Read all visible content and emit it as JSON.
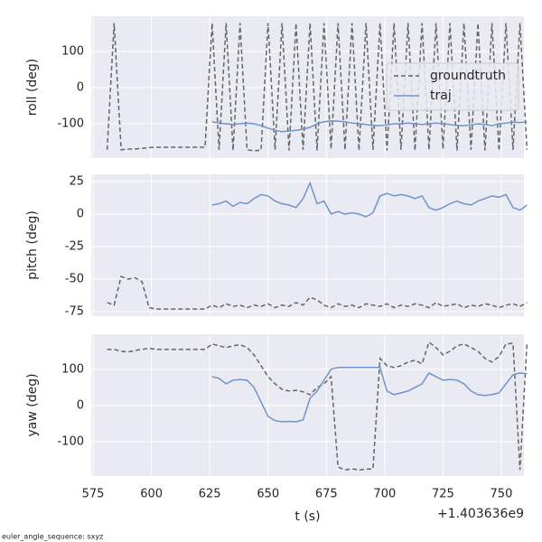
{
  "chart_data": [
    {
      "type": "line",
      "ylabel": "roll (deg)",
      "ylim": [
        -195,
        197
      ],
      "yticks": [
        -100,
        0,
        100
      ],
      "xlim": [
        574.2,
        759.7
      ],
      "xticks": [
        575,
        600,
        625,
        650,
        675,
        700,
        725,
        750
      ],
      "grid": true,
      "legend": "center right",
      "x": [
        581,
        584,
        587,
        590,
        593,
        596,
        599,
        602,
        605,
        608,
        611,
        614,
        617,
        620,
        623,
        626,
        629,
        632,
        635,
        638,
        641,
        644,
        647,
        650,
        653,
        656,
        659,
        662,
        665,
        668,
        671,
        674,
        677,
        680,
        683,
        686,
        689,
        692,
        695,
        698,
        701,
        704,
        707,
        710,
        713,
        716,
        719,
        722,
        725,
        728,
        731,
        734,
        737,
        740,
        743,
        746,
        749,
        752,
        755,
        758,
        761
      ],
      "series": [
        {
          "name": "groundtruth",
          "color": "#666666",
          "dashed": true,
          "values": [
            -172,
            178,
            -172,
            -170,
            -170,
            -168,
            -166,
            -165,
            -165,
            -165,
            -165,
            -165,
            -165,
            -165,
            -165,
            178,
            -172,
            178,
            -174,
            178,
            -172,
            -175,
            -173,
            178,
            -172,
            178,
            -174,
            178,
            -172,
            178,
            -174,
            178,
            -170,
            178,
            -172,
            178,
            -174,
            178,
            -172,
            178,
            -174,
            178,
            -172,
            178,
            -174,
            178,
            -172,
            178,
            -170,
            178,
            -174,
            178,
            -172,
            178,
            -174,
            178,
            -175,
            178,
            -172,
            178,
            -172
          ]
        },
        {
          "name": "traj",
          "color": "#7094c8",
          "dashed": false,
          "values": [
            null,
            null,
            null,
            null,
            null,
            null,
            null,
            null,
            null,
            null,
            null,
            null,
            null,
            null,
            null,
            -95,
            -98,
            -100,
            -102,
            -100,
            -98,
            -100,
            -105,
            -112,
            -118,
            -122,
            -120,
            -118,
            -115,
            -110,
            -100,
            -95,
            -92,
            -93,
            -95,
            -98,
            -100,
            -102,
            -105,
            -105,
            -103,
            -100,
            -100,
            -98,
            -100,
            -102,
            -100,
            -98,
            -100,
            -102,
            -105,
            -105,
            -103,
            -100,
            -102,
            -105,
            -100,
            -98,
            -96,
            -97,
            -95
          ]
        }
      ]
    },
    {
      "type": "line",
      "ylabel": "pitch (deg)",
      "ylim": [
        -78.5,
        30.6
      ],
      "yticks": [
        -75,
        -50,
        -25,
        0,
        25
      ],
      "xlim": [
        574.2,
        759.7
      ],
      "xticks": [
        575,
        600,
        625,
        650,
        675,
        700,
        725,
        750
      ],
      "grid": true,
      "x": [
        581,
        584,
        587,
        590,
        593,
        596,
        599,
        602,
        605,
        608,
        611,
        614,
        617,
        620,
        623,
        626,
        629,
        632,
        635,
        638,
        641,
        644,
        647,
        650,
        653,
        656,
        659,
        662,
        665,
        668,
        671,
        674,
        677,
        680,
        683,
        686,
        689,
        692,
        695,
        698,
        701,
        704,
        707,
        710,
        713,
        716,
        719,
        722,
        725,
        728,
        731,
        734,
        737,
        740,
        743,
        746,
        749,
        752,
        755,
        758,
        761
      ],
      "series": [
        {
          "name": "groundtruth",
          "color": "#666666",
          "dashed": true,
          "values": [
            -68,
            -70,
            -48,
            -50,
            -49,
            -52,
            -72,
            -73,
            -73,
            -73,
            -73,
            -73,
            -73,
            -73,
            -73,
            -70,
            -72,
            -69,
            -71,
            -70,
            -72,
            -70,
            -71,
            -69,
            -72,
            -70,
            -71,
            -68,
            -70,
            -64,
            -66,
            -70,
            -72,
            -69,
            -71,
            -70,
            -72,
            -69,
            -70,
            -71,
            -69,
            -72,
            -70,
            -71,
            -69,
            -70,
            -72,
            -68,
            -71,
            -70,
            -69,
            -72,
            -70,
            -71,
            -69,
            -70,
            -72,
            -70,
            -69,
            -71,
            -68
          ]
        },
        {
          "name": "traj",
          "color": "#7094c8",
          "dashed": false,
          "values": [
            null,
            null,
            null,
            null,
            null,
            null,
            null,
            null,
            null,
            null,
            null,
            null,
            null,
            null,
            null,
            7,
            8,
            10,
            6,
            9,
            8,
            12,
            15,
            14,
            10,
            8,
            7,
            5,
            12,
            24,
            8,
            10,
            0,
            2,
            0,
            1,
            0,
            -2,
            1,
            14,
            16,
            14,
            15,
            14,
            12,
            14,
            5,
            3,
            5,
            8,
            10,
            8,
            7,
            10,
            12,
            14,
            13,
            15,
            5,
            3,
            7
          ]
        }
      ]
    },
    {
      "type": "line",
      "ylabel": "yaw (deg)",
      "xlabel": "t (s)",
      "x_offset_label": "+1.403636e9",
      "ylim": [
        -195,
        197
      ],
      "yticks": [
        -100,
        0,
        100
      ],
      "xlim": [
        574.2,
        759.7
      ],
      "xticks": [
        575,
        600,
        625,
        650,
        675,
        700,
        725,
        750
      ],
      "grid": true,
      "x": [
        581,
        584,
        587,
        590,
        593,
        596,
        599,
        602,
        605,
        608,
        611,
        614,
        617,
        620,
        623,
        626,
        629,
        632,
        635,
        638,
        641,
        644,
        647,
        650,
        653,
        656,
        659,
        662,
        665,
        668,
        671,
        674,
        677,
        680,
        683,
        686,
        689,
        692,
        695,
        698,
        701,
        704,
        707,
        710,
        713,
        716,
        719,
        722,
        725,
        728,
        731,
        734,
        737,
        740,
        743,
        746,
        749,
        752,
        755,
        758,
        761
      ],
      "series": [
        {
          "name": "groundtruth",
          "color": "#666666",
          "dashed": true,
          "values": [
            155,
            155,
            150,
            148,
            152,
            155,
            158,
            155,
            155,
            155,
            155,
            155,
            155,
            155,
            155,
            170,
            165,
            160,
            165,
            168,
            160,
            140,
            110,
            80,
            60,
            45,
            40,
            42,
            38,
            30,
            50,
            60,
            80,
            -170,
            -178,
            -175,
            -178,
            -176,
            -175,
            130,
            110,
            105,
            110,
            120,
            125,
            115,
            175,
            160,
            140,
            150,
            165,
            170,
            160,
            150,
            130,
            120,
            135,
            170,
            172,
            -178,
            175
          ]
        },
        {
          "name": "traj",
          "color": "#7094c8",
          "dashed": false,
          "values": [
            null,
            null,
            null,
            null,
            null,
            null,
            null,
            null,
            null,
            null,
            null,
            null,
            null,
            null,
            null,
            80,
            75,
            60,
            70,
            72,
            70,
            50,
            10,
            -30,
            -42,
            -45,
            -44,
            -45,
            -40,
            20,
            40,
            70,
            100,
            105,
            105,
            105,
            105,
            105,
            105,
            105,
            40,
            30,
            35,
            40,
            50,
            60,
            90,
            80,
            70,
            72,
            70,
            60,
            40,
            30,
            28,
            30,
            35,
            60,
            85,
            90,
            88
          ]
        }
      ]
    }
  ],
  "footnote": "euler_angle_sequence: sxyz"
}
